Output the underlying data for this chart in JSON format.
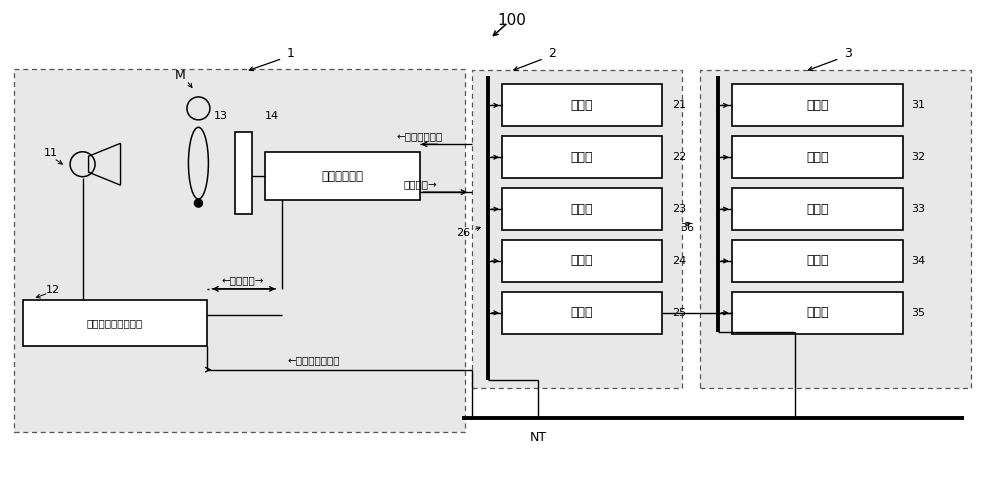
{
  "title": "100",
  "bg_color": "#ffffff",
  "label1": "1",
  "label2": "2",
  "label3": "3",
  "label11": "11",
  "label12": "12",
  "label13": "13",
  "label14": "14",
  "labelM": "M",
  "label21": "21",
  "label22": "22",
  "label23": "23",
  "label24": "24",
  "label25": "25",
  "label26": "26",
  "label36": "36",
  "label31": "31",
  "label32": "32",
  "label33": "33",
  "label34": "34",
  "label35": "35",
  "labelNT": "NT",
  "box_read_ctrl": "读取控制装置",
  "box_radiation": "放射线照射控制装置",
  "box2_21": "控制部",
  "box2_22": "存储部",
  "box2_23": "操作部",
  "box2_24": "显示部",
  "box2_25": "通信部",
  "box3_31": "控制部",
  "box3_32": "存储部",
  "box3_33": "操作部",
  "box3_34": "显示部",
  "box3_35": "通信部",
  "arrow1_text": "←图像读取条件",
  "arrow2_text": "图像数据→",
  "arrow3_text": "←同步信号→",
  "arrow4_text": "←放射线照射条件"
}
